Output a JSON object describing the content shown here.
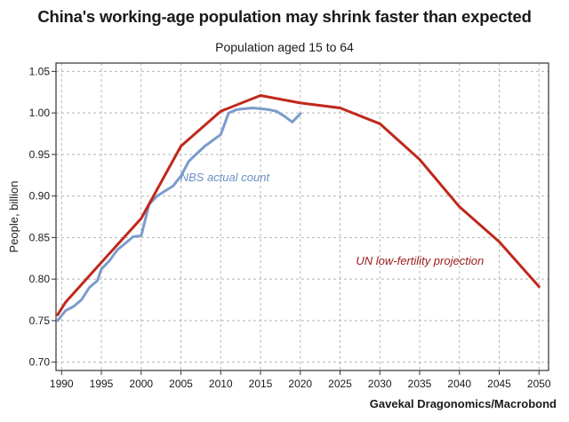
{
  "chart_data": {
    "type": "line",
    "title": "China's working-age population may shrink faster than expected",
    "subtitle": "Population aged 15 to 64",
    "ylabel": "People, billion",
    "xlabel": "",
    "source": "Gavekal Dragonomics/Macrobond",
    "xlim": [
      1989.3,
      2051.2
    ],
    "ylim": [
      0.69,
      1.06
    ],
    "x_ticks": [
      1990,
      1995,
      2000,
      2005,
      2010,
      2015,
      2020,
      2025,
      2030,
      2035,
      2040,
      2045,
      2050
    ],
    "y_ticks": [
      0.7,
      0.75,
      0.8,
      0.85,
      0.9,
      0.95,
      1.0,
      1.05
    ],
    "grid": true,
    "legend": "none",
    "series": [
      {
        "name": "NBS actual count",
        "color": "#7a9ccc",
        "points": [
          [
            1989.5,
            0.75
          ],
          [
            1990.5,
            0.762
          ],
          [
            1991.5,
            0.767
          ],
          [
            1992.5,
            0.775
          ],
          [
            1993.5,
            0.79
          ],
          [
            1994.5,
            0.798
          ],
          [
            1995,
            0.812
          ],
          [
            1996,
            0.822
          ],
          [
            1997,
            0.835
          ],
          [
            1998,
            0.843
          ],
          [
            1999,
            0.851
          ],
          [
            2000,
            0.852
          ],
          [
            2001,
            0.89
          ],
          [
            2002,
            0.9
          ],
          [
            2003,
            0.906
          ],
          [
            2004,
            0.912
          ],
          [
            2005,
            0.924
          ],
          [
            2006,
            0.942
          ],
          [
            2007,
            0.951
          ],
          [
            2008,
            0.96
          ],
          [
            2009,
            0.967
          ],
          [
            2010,
            0.974
          ],
          [
            2011,
            1.0
          ],
          [
            2012,
            1.004
          ],
          [
            2013,
            1.005
          ],
          [
            2014,
            1.006
          ],
          [
            2015,
            1.005
          ],
          [
            2016,
            1.004
          ],
          [
            2017,
            1.002
          ],
          [
            2018,
            0.996
          ],
          [
            2019,
            0.989
          ],
          [
            2020,
            0.999
          ]
        ]
      },
      {
        "name": "UN low-fertility projection",
        "color": "#c0281c",
        "points": [
          [
            1989.5,
            0.757
          ],
          [
            1990.5,
            0.772
          ],
          [
            1995,
            0.82
          ],
          [
            2000,
            0.873
          ],
          [
            2005,
            0.96
          ],
          [
            2010,
            1.002
          ],
          [
            2015,
            1.021
          ],
          [
            2020,
            1.012
          ],
          [
            2025,
            1.006
          ],
          [
            2030,
            0.987
          ],
          [
            2035,
            0.944
          ],
          [
            2040,
            0.887
          ],
          [
            2045,
            0.845
          ],
          [
            2050,
            0.791
          ]
        ]
      }
    ],
    "annotations": [
      {
        "text": "NBS actual count",
        "x": 2004.9,
        "y": 0.918,
        "color": "#6b8fc4"
      },
      {
        "text": "UN low-fertility projection",
        "x": 2027.0,
        "y": 0.817,
        "color": "#9c1a1a"
      }
    ]
  }
}
